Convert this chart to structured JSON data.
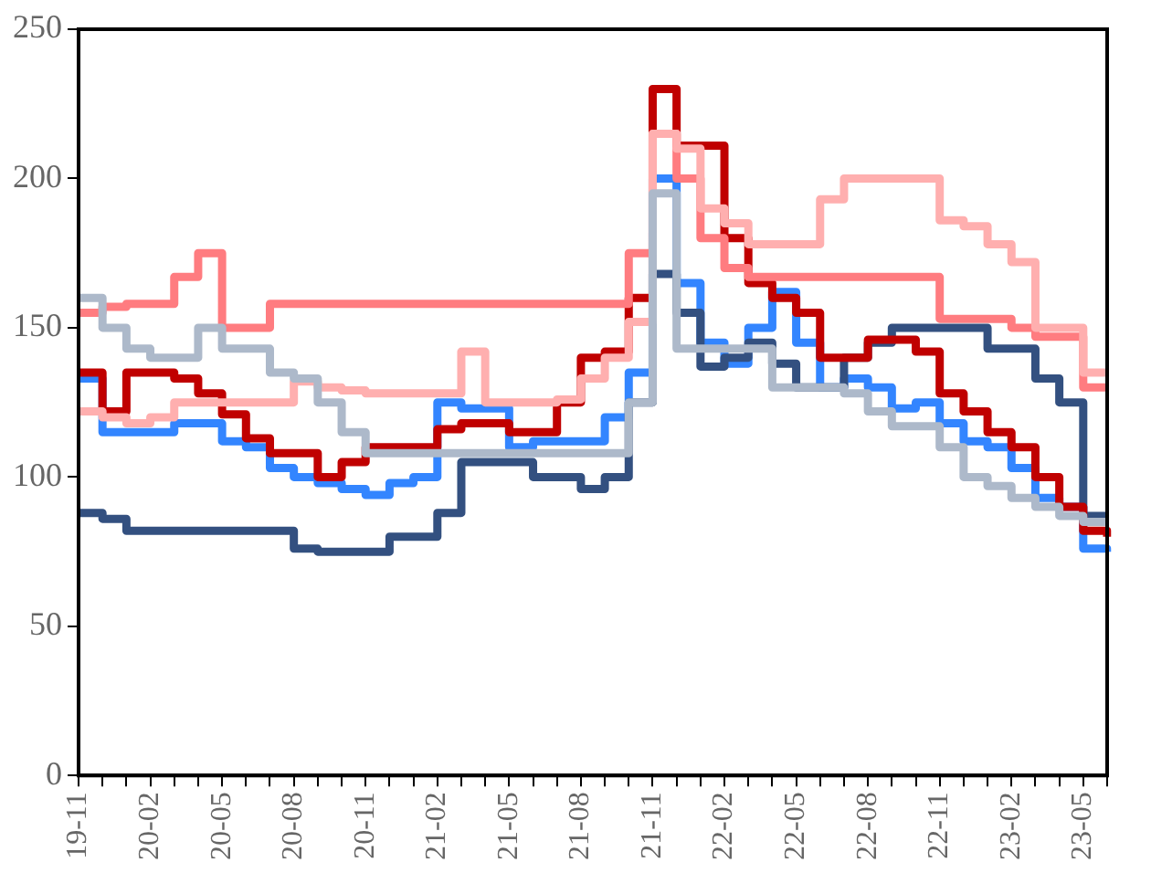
{
  "chart_data": {
    "type": "step",
    "categories": [
      "19-11",
      null,
      null,
      "20-02",
      null,
      null,
      "20-05",
      null,
      null,
      "20-08",
      null,
      null,
      "20-11",
      null,
      null,
      "21-02",
      null,
      null,
      "21-05",
      null,
      null,
      "21-08",
      null,
      null,
      "21-11",
      null,
      null,
      "22-02",
      null,
      null,
      "22-05",
      null,
      null,
      "22-08",
      null,
      null,
      "22-11",
      null,
      null,
      "23-02",
      null,
      null,
      "23-05",
      null
    ],
    "series": [
      {
        "color": "#adb9ca",
        "values": [
          160,
          150,
          143,
          140,
          140,
          150,
          143,
          143,
          135,
          133,
          125,
          115,
          108,
          108,
          108,
          108,
          108,
          108,
          108,
          108,
          108,
          108,
          108,
          125,
          195,
          143,
          143,
          143,
          143,
          130,
          130,
          130,
          128,
          122,
          117,
          117,
          110,
          100,
          97,
          93,
          90,
          87,
          85,
          85
        ]
      },
      {
        "color": "#ffafaf",
        "values": [
          122,
          120,
          118,
          120,
          125,
          125,
          125,
          125,
          125,
          132,
          130,
          129,
          128,
          128,
          128,
          128,
          142,
          125,
          125,
          125,
          126,
          133,
          140,
          152,
          215,
          210,
          190,
          185,
          178,
          178,
          178,
          193,
          200,
          200,
          200,
          200,
          186,
          184,
          178,
          172,
          150,
          150,
          135,
          135
        ]
      },
      {
        "color": "#ff7c80",
        "values": [
          155,
          157,
          158,
          158,
          167,
          175,
          150,
          150,
          158,
          158,
          158,
          158,
          158,
          158,
          158,
          158,
          158,
          158,
          158,
          158,
          158,
          158,
          158,
          175,
          215,
          200,
          180,
          170,
          167,
          167,
          167,
          167,
          167,
          167,
          167,
          167,
          153,
          153,
          153,
          150,
          147,
          147,
          130,
          130
        ]
      },
      {
        "color": "#c00000",
        "values": [
          135,
          122,
          135,
          135,
          133,
          128,
          121,
          113,
          108,
          108,
          100,
          105,
          110,
          110,
          110,
          116,
          118,
          118,
          115,
          115,
          125,
          140,
          142,
          160,
          230,
          211,
          211,
          180,
          165,
          160,
          155,
          140,
          140,
          146,
          146,
          142,
          128,
          122,
          115,
          110,
          100,
          90,
          82,
          80
        ]
      },
      {
        "color": "#335080",
        "values": [
          88,
          86,
          82,
          82,
          82,
          82,
          82,
          82,
          82,
          76,
          75,
          75,
          75,
          80,
          80,
          88,
          105,
          105,
          105,
          100,
          100,
          96,
          100,
          125,
          168,
          155,
          137,
          140,
          145,
          138,
          130,
          130,
          140,
          145,
          150,
          150,
          150,
          150,
          143,
          143,
          133,
          125,
          87,
          87
        ]
      },
      {
        "color": "#3385ff",
        "values": [
          133,
          115,
          115,
          115,
          118,
          118,
          112,
          110,
          103,
          100,
          98,
          96,
          94,
          98,
          100,
          125,
          123,
          123,
          110,
          112,
          112,
          112,
          120,
          135,
          200,
          165,
          145,
          138,
          150,
          162,
          145,
          130,
          133,
          130,
          123,
          125,
          118,
          112,
          110,
          103,
          93,
          90,
          76,
          75
        ]
      }
    ],
    "ylim": [
      0,
      250
    ],
    "yticks": [
      0,
      50,
      100,
      150,
      200,
      250
    ],
    "grid": false,
    "legend": false
  }
}
